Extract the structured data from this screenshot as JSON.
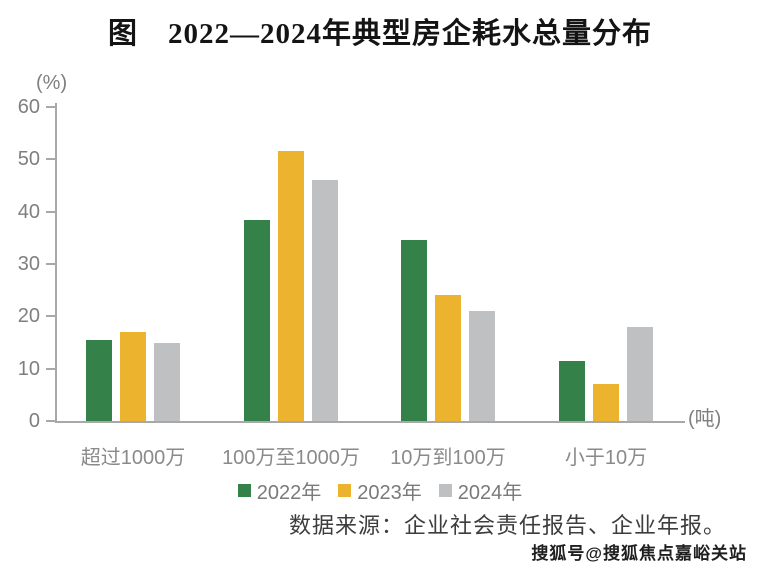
{
  "title": "图　2022—2024年典型房企耗水总量分布",
  "chart_data": {
    "type": "bar",
    "title": "图　2022—2024年典型房企耗水总量分布",
    "categories": [
      "超过1000万",
      "100万至1000万",
      "10万到100万",
      "小于10万"
    ],
    "series": [
      {
        "name": "2022年",
        "color": "#348149",
        "values": [
          15.5,
          38.5,
          34.5,
          11.5
        ]
      },
      {
        "name": "2023年",
        "color": "#ECB32F",
        "values": [
          17,
          51.5,
          24,
          7
        ]
      },
      {
        "name": "2024年",
        "color": "#BEC0C2",
        "values": [
          15,
          46,
          21,
          18
        ]
      }
    ],
    "y_axis": {
      "unit": "(%)",
      "min": 0,
      "max": 60,
      "step": 10,
      "ticks": [
        0,
        10,
        20,
        30,
        40,
        50,
        60
      ]
    },
    "x_axis": {
      "unit": "(吨)"
    },
    "legend_position": "bottom",
    "grid": false
  },
  "source_note": "数据来源：企业社会责任报告、企业年报。",
  "watermark": "搜狐号@搜狐焦点嘉峪关站"
}
